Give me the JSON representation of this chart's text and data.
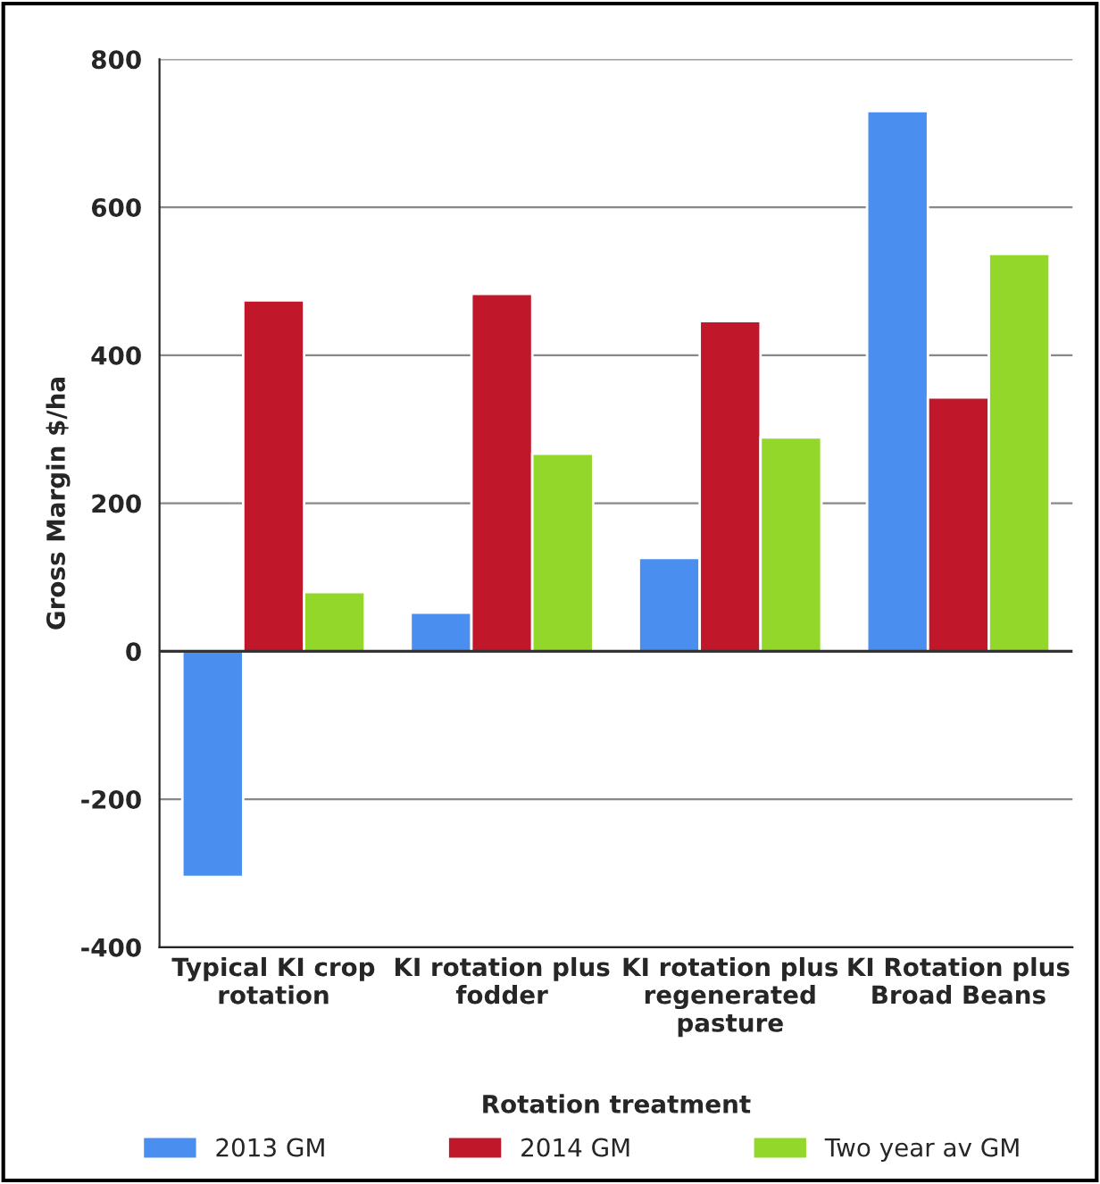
{
  "chart_data": {
    "type": "bar",
    "categories": [
      "Typical KI crop rotation",
      "KI rotation plus fodder",
      "KI rotation plus regenerated pasture",
      "KI Rotation plus Broad Beans"
    ],
    "series": [
      {
        "name": "2013 GM",
        "color": "#4a8ff0",
        "values": [
          -305,
          52,
          126,
          730
        ]
      },
      {
        "name": "2014 GM",
        "color": "#c0182a",
        "values": [
          474,
          483,
          446,
          343
        ]
      },
      {
        "name": "Two year av GM",
        "color": "#92d72a",
        "values": [
          80,
          267,
          289,
          537
        ]
      }
    ],
    "xlabel": "Rotation treatment",
    "ylabel": "Gross Margin $/ha",
    "ylim": [
      -400,
      800
    ],
    "yticks": [
      -400,
      -200,
      0,
      200,
      400,
      600,
      800
    ],
    "grid": "y",
    "legend": "bottom"
  }
}
